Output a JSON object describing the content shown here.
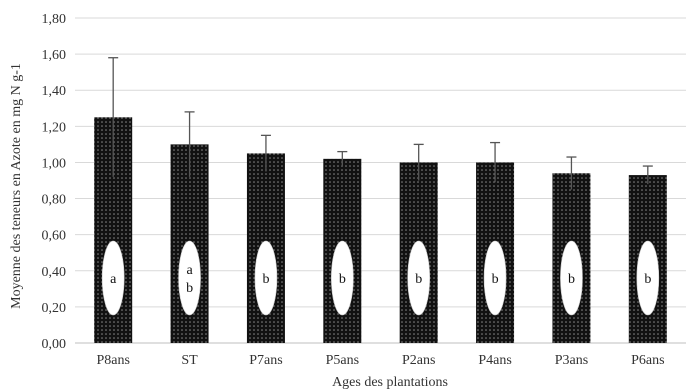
{
  "chart_data": {
    "type": "bar",
    "title": "",
    "xlabel": "Ages des plantations",
    "ylabel": "Moyenne des teneurs en Azote en mg N g-1",
    "ylim": [
      0,
      1.8
    ],
    "yticks": [
      "0,00",
      "0,20",
      "0,40",
      "0,60",
      "0,80",
      "1,00",
      "1,20",
      "1,40",
      "1,60",
      "1,80"
    ],
    "grid": true,
    "categories": [
      "P8ans",
      "ST",
      "P7ans",
      "P5ans",
      "P2ans",
      "P4ans",
      "P3ans",
      "P6ans"
    ],
    "values": [
      1.25,
      1.1,
      1.05,
      1.02,
      1.0,
      1.0,
      0.94,
      0.93
    ],
    "error": [
      0.33,
      0.18,
      0.1,
      0.04,
      0.1,
      0.11,
      0.09,
      0.05
    ],
    "significance_letters": [
      "a",
      "a b",
      "b",
      "b",
      "b",
      "b",
      "b",
      "b"
    ],
    "colors": {
      "bar_fill": "#111111",
      "bar_dots": "#8a8a8a",
      "error_bar": "#555555",
      "grid": "#d9d9d9",
      "axis": "#bfbfbf"
    }
  }
}
